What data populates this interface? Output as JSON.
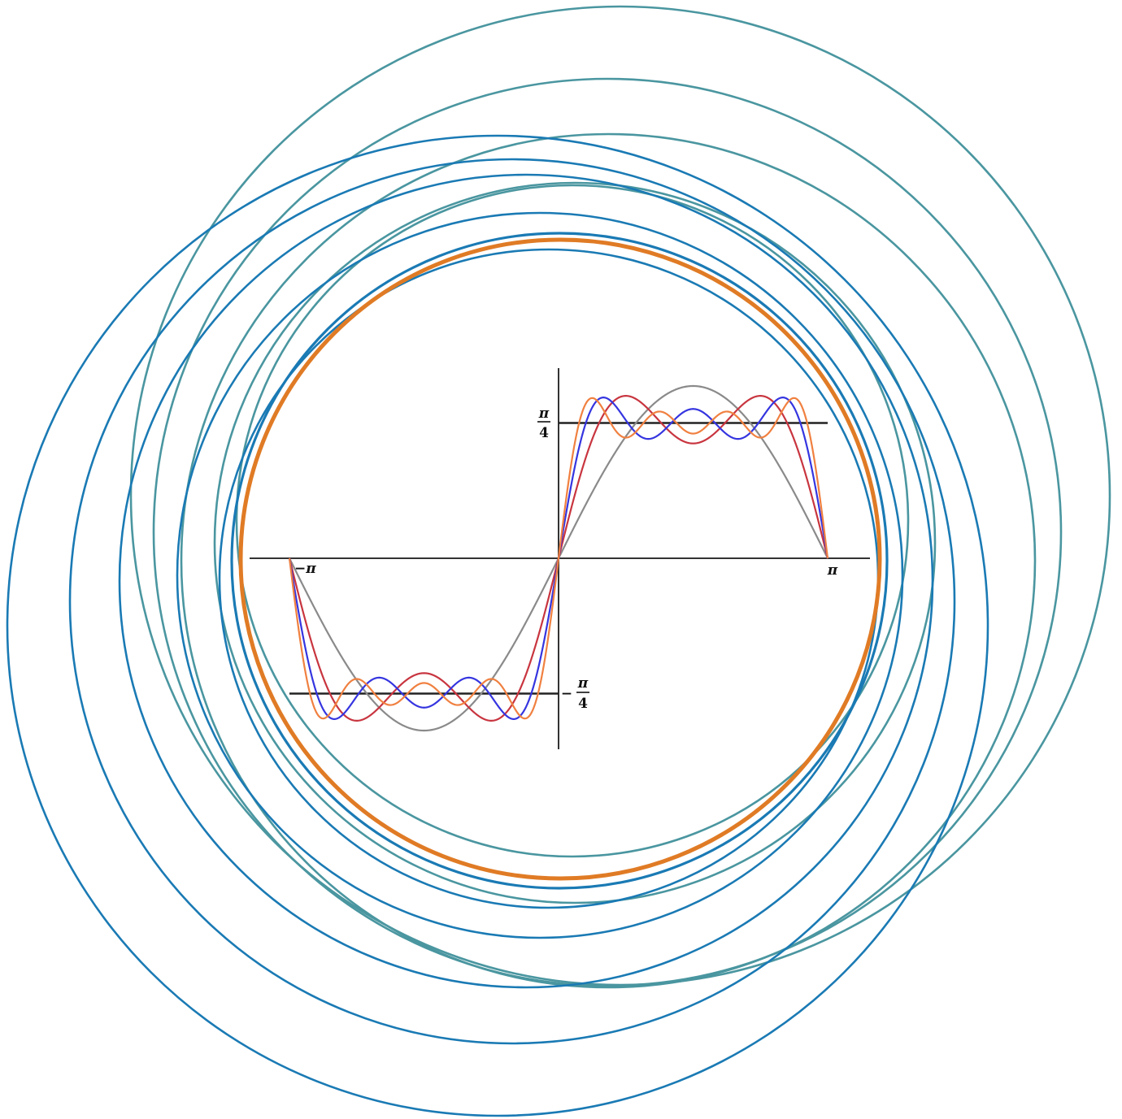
{
  "chart_data": {
    "type": "line",
    "title": "",
    "xlabel": "",
    "ylabel": "",
    "xlim": [
      -3.14159,
      3.14159
    ],
    "ylim": [
      -1.0,
      1.0
    ],
    "grid": false,
    "legend": "none",
    "reference_level": 0.785398,
    "x_tick_labels": {
      "neg_pi": "−π",
      "pi": "π"
    },
    "y_tick_labels": {
      "pos_num": "π",
      "pos_den": "4",
      "neg_sign": "−",
      "neg_num": "π",
      "neg_den": "4"
    },
    "series": [
      {
        "terms": 1,
        "color": "#8a8a8a"
      },
      {
        "terms": 2,
        "color": "#c8353f"
      },
      {
        "terms": 3,
        "color": "#3535e0"
      },
      {
        "terms": 4,
        "color": "#f08040"
      }
    ]
  },
  "decoration": {
    "ring_color_teal": "#4a96a0",
    "ring_color_blue": "#1a7ab4",
    "ring_color_orange": "#e07b25",
    "axis_color": "#333333",
    "ring_count": 11
  }
}
